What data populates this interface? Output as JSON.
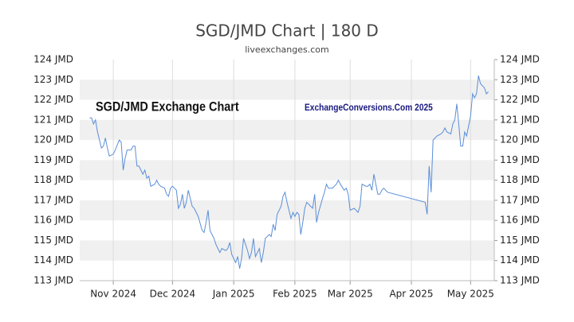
{
  "chart_data": {
    "type": "line",
    "title": "SGD/JMD Chart | 180 D",
    "subtitle": "liveexchanges.com",
    "annotations": [
      "SGD/JMD Exchange Chart",
      "ExchangeConversions.Com 2025"
    ],
    "color": "#5b8ed8",
    "grid": true,
    "x": [
      19,
      20,
      21,
      22,
      23,
      24,
      25,
      26,
      27,
      28,
      29,
      31,
      32,
      34,
      35,
      36,
      37,
      38,
      40,
      41,
      42,
      43,
      44,
      46,
      47,
      48,
      49,
      50,
      52,
      53,
      54,
      55,
      57,
      58,
      59,
      60,
      61,
      63,
      64,
      65,
      66,
      67,
      68,
      69,
      71,
      72,
      73,
      74,
      76,
      77,
      78,
      79,
      80,
      82,
      83,
      84,
      85,
      86,
      88,
      89,
      90,
      91,
      93,
      94,
      95,
      96,
      97,
      99,
      100,
      101,
      102,
      103,
      105,
      106,
      107,
      108,
      110,
      111,
      112,
      113,
      114,
      116,
      117,
      118,
      119,
      121,
      122,
      123,
      124,
      125,
      126,
      127,
      128,
      129,
      131,
      132,
      133,
      134,
      135,
      137,
      138,
      139,
      140,
      142,
      143,
      144,
      145,
      146,
      148,
      149,
      150,
      151,
      153,
      154,
      155,
      156,
      157,
      159,
      160,
      161,
      162,
      163,
      165,
      166,
      167,
      168,
      170,
      189,
      190,
      191,
      192,
      193,
      194,
      195,
      197,
      198,
      199,
      200,
      202,
      203,
      204,
      205,
      206,
      207,
      208,
      209,
      210,
      212,
      213,
      214,
      215,
      216,
      217,
      219,
      220,
      221
    ],
    "values": [
      121.1,
      121.1,
      120.8,
      121.0,
      120.4,
      120.0,
      119.6,
      119.7,
      120.1,
      119.6,
      119.2,
      119.3,
      119.5,
      120.0,
      119.9,
      118.5,
      119.1,
      119.5,
      119.5,
      119.7,
      119.7,
      118.7,
      118.7,
      118.3,
      118.5,
      118.1,
      118.2,
      117.7,
      117.8,
      118.0,
      117.8,
      117.7,
      117.6,
      117.3,
      117.2,
      117.6,
      117.7,
      117.5,
      116.6,
      116.8,
      117.3,
      116.6,
      116.9,
      117.5,
      116.7,
      116.6,
      116.4,
      116.2,
      115.5,
      115.4,
      115.9,
      116.5,
      115.5,
      115.1,
      114.8,
      114.6,
      114.4,
      114.6,
      114.5,
      114.6,
      114.9,
      114.3,
      113.9,
      114.2,
      113.6,
      114.1,
      115.1,
      114.5,
      114.1,
      114.4,
      115.1,
      114.2,
      114.6,
      113.9,
      114.4,
      115.1,
      115.3,
      115.2,
      115.8,
      115.5,
      116.3,
      116.7,
      117.2,
      117.4,
      116.9,
      116.1,
      116.4,
      116.2,
      116.4,
      116.3,
      115.3,
      115.9,
      116.6,
      116.9,
      116.7,
      116.6,
      117.3,
      115.9,
      116.4,
      117.1,
      117.4,
      117.8,
      117.6,
      117.6,
      117.7,
      117.8,
      118.0,
      117.8,
      117.5,
      117.6,
      117.3,
      116.5,
      116.6,
      116.5,
      116.4,
      116.7,
      117.8,
      117.7,
      117.7,
      117.8,
      117.5,
      118.3,
      117.3,
      117.3,
      117.5,
      117.6,
      117.4,
      116.9,
      116.3,
      118.7,
      117.4,
      120.0,
      120.1,
      120.2,
      120.3,
      120.4,
      120.6,
      120.4,
      120.3,
      120.8,
      121.0,
      121.8,
      120.8,
      119.7,
      119.7,
      120.4,
      120.2,
      121.2,
      122.3,
      122.1,
      122.3,
      123.2,
      122.8,
      122.6,
      122.3,
      122.4
    ],
    "xlim": [
      14,
      224
    ],
    "xticks": [
      {
        "value": 31,
        "label": "Nov 2024"
      },
      {
        "value": 61,
        "label": "Dec 2024"
      },
      {
        "value": 92,
        "label": "Jan 2025"
      },
      {
        "value": 123,
        "label": "Feb 2025"
      },
      {
        "value": 151,
        "label": "Mar 2025"
      },
      {
        "value": 182,
        "label": "Apr 2025"
      },
      {
        "value": 212,
        "label": "May 2025"
      }
    ],
    "ylim": [
      113,
      124
    ],
    "yticks": [
      {
        "value": 113,
        "label": "113 JMD"
      },
      {
        "value": 114,
        "label": "114 JMD"
      },
      {
        "value": 115,
        "label": "115 JMD"
      },
      {
        "value": 116,
        "label": "116 JMD"
      },
      {
        "value": 117,
        "label": "117 JMD"
      },
      {
        "value": 118,
        "label": "118 JMD"
      },
      {
        "value": 119,
        "label": "119 JMD"
      },
      {
        "value": 120,
        "label": "120 JMD"
      },
      {
        "value": 121,
        "label": "121 JMD"
      },
      {
        "value": 122,
        "label": "122 JMD"
      },
      {
        "value": 123,
        "label": "123 JMD"
      },
      {
        "value": 124,
        "label": "124 JMD"
      }
    ]
  }
}
